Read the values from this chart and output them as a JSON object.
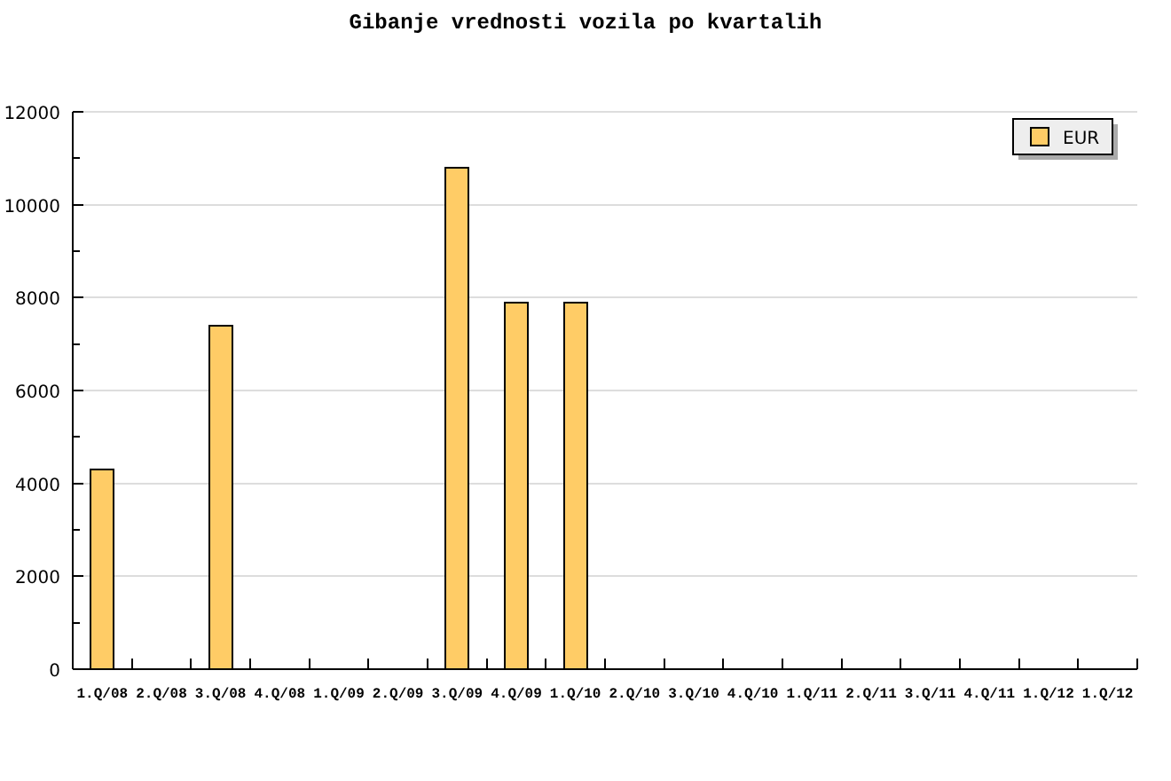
{
  "chart_data": {
    "type": "bar",
    "title": "Gibanje vrednosti vozila po kvartalih",
    "categories": [
      "1.Q/08",
      "2.Q/08",
      "3.Q/08",
      "4.Q/08",
      "1.Q/09",
      "2.Q/09",
      "3.Q/09",
      "4.Q/09",
      "1.Q/10",
      "2.Q/10",
      "3.Q/10",
      "4.Q/10",
      "1.Q/11",
      "2.Q/11",
      "3.Q/11",
      "4.Q/11",
      "1.Q/12",
      "1.Q/12"
    ],
    "series": [
      {
        "name": "EUR",
        "color": "#ffcc66",
        "values": [
          4300,
          null,
          7400,
          null,
          null,
          null,
          10800,
          7900,
          7900,
          null,
          null,
          null,
          null,
          null,
          null,
          null,
          null,
          null
        ]
      }
    ],
    "ylim": [
      0,
      12000
    ],
    "yticks": [
      0,
      {
        "value": 1000,
        "label": null
      },
      2000,
      {
        "value": 3000,
        "label": null
      },
      4000,
      {
        "value": 5000,
        "label": null
      },
      6000,
      {
        "value": 7000,
        "label": null
      },
      8000,
      {
        "value": 9000,
        "label": null
      },
      10000,
      {
        "value": 11000,
        "label": null
      },
      12000
    ],
    "grid": "y",
    "legend": "top right"
  }
}
